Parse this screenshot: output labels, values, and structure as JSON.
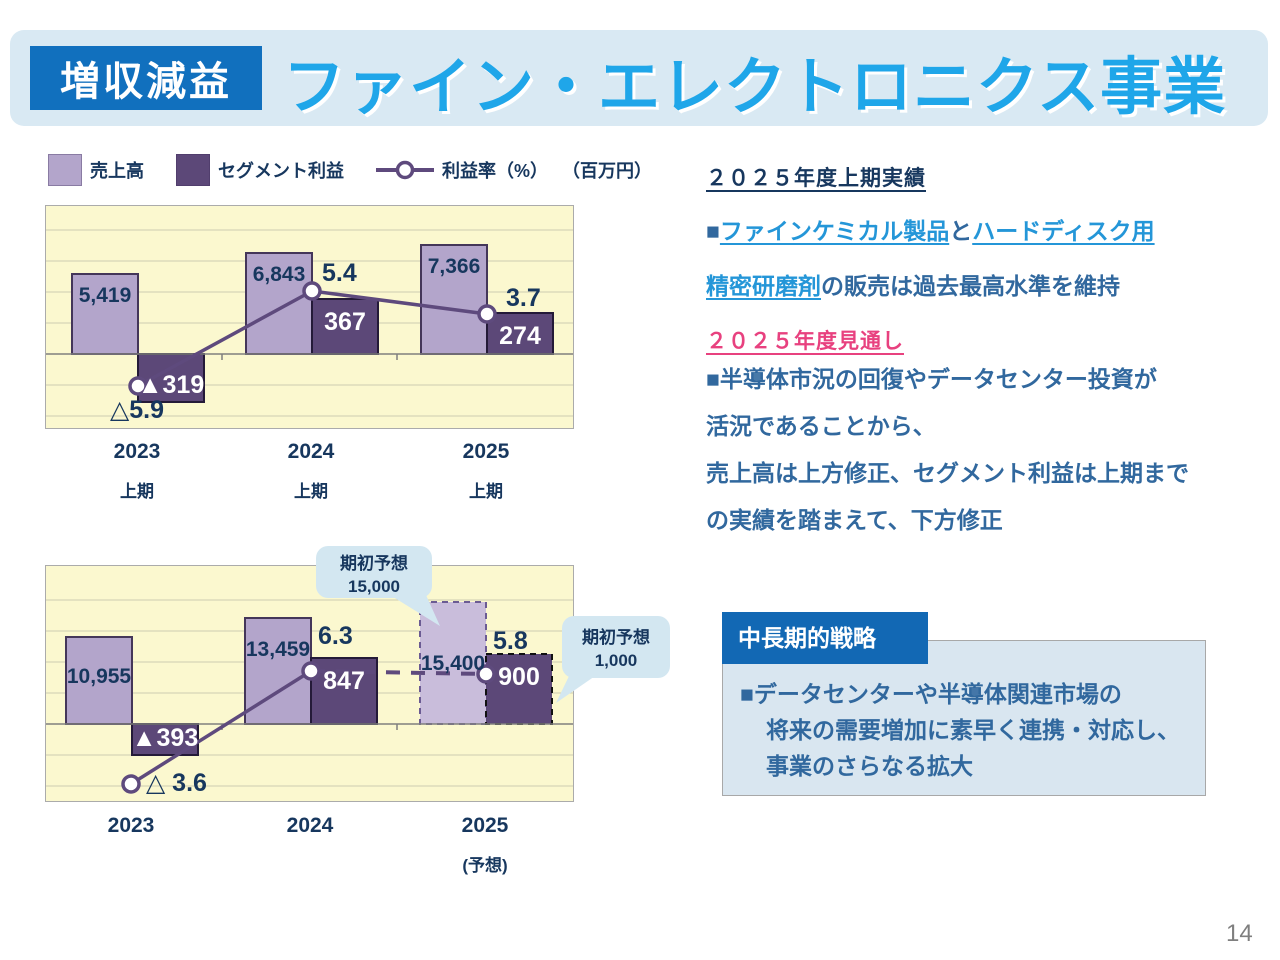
{
  "slide": {
    "badge": "増収減益",
    "title": "ファイン・エレクトロニクス事業",
    "page_number": "14"
  },
  "legend": {
    "sales_label": "売上高",
    "profit_label": "セグメント利益",
    "rate_label": "利益率（%）",
    "unit_label": "（百万円）"
  },
  "colors": {
    "sales_bar": "#B3A5CB",
    "sales_bar_forecast": "#C9BDDB",
    "profit_bar": "#5C4878",
    "bar_border": "#443659",
    "rate_line": "#5E4A7D",
    "grid": "#CCCCB2",
    "axis": "#7F7F7F",
    "chart_bg": "#FBF8CF",
    "callout_bg": "#D3E7F1",
    "badge_blue": "#1170BE",
    "title_blue": "#1FA6E9",
    "heading_navy": "#17375E",
    "body_blue": "#31689E",
    "link_blue": "#2496D8",
    "pink": "#E8417F",
    "strategy_header_blue": "#1268B4",
    "strategy_bg": "#D9E6F0"
  },
  "chart_data": [
    {
      "type": "bar",
      "name": "half-year-results",
      "unit": "百万円",
      "categories": [
        {
          "year": "2023",
          "sub": "上期"
        },
        {
          "year": "2024",
          "sub": "上期"
        },
        {
          "year": "2025",
          "sub": "上期"
        }
      ],
      "series": [
        {
          "name": "売上高",
          "values": [
            5419,
            6843,
            7366
          ],
          "labels": [
            "5,419",
            "6,843",
            "7,366"
          ]
        },
        {
          "name": "セグメント利益",
          "values": [
            -319,
            367,
            274
          ],
          "labels": [
            "▲319",
            "367",
            "274"
          ]
        },
        {
          "name": "利益率（%）",
          "values": [
            -5.9,
            5.4,
            3.7
          ],
          "labels": [
            "△5.9",
            "5.4",
            "3.7"
          ]
        }
      ]
    },
    {
      "type": "bar",
      "name": "full-year-results-and-forecast",
      "unit": "百万円",
      "forecast_index": 2,
      "categories": [
        {
          "year": "2023",
          "sub": ""
        },
        {
          "year": "2024",
          "sub": ""
        },
        {
          "year": "2025",
          "sub": "(予想)"
        }
      ],
      "series": [
        {
          "name": "売上高",
          "values": [
            10955,
            13459,
            15400
          ],
          "labels": [
            "10,955",
            "13,459",
            "15,400"
          ]
        },
        {
          "name": "セグメント利益",
          "values": [
            -393,
            847,
            900
          ],
          "labels": [
            "▲393",
            "847",
            "900"
          ]
        },
        {
          "name": "利益率（%）",
          "values": [
            -3.6,
            6.3,
            5.8
          ],
          "labels": [
            "△ 3.6",
            "6.3",
            "5.8"
          ]
        }
      ],
      "callouts": [
        {
          "line1": "期初予想",
          "line2": "15,000"
        },
        {
          "line1": "期初予想",
          "line2": "1,000"
        }
      ]
    }
  ],
  "right_panel": {
    "results_heading": "２０２５年度上期実績",
    "results_parts": [
      {
        "t": "■",
        "s": "plain"
      },
      {
        "t": "ファインケミカル製品",
        "s": "link"
      },
      {
        "t": "と",
        "s": "plain"
      },
      {
        "t": "ハードディスク用",
        "s": "link"
      },
      {
        "t": "",
        "s": "br"
      },
      {
        "t": "精密研磨剤",
        "s": "link"
      },
      {
        "t": "の販売は過去最高水準を維持",
        "s": "plain"
      }
    ],
    "outlook_heading": "２０２５年度見通し",
    "outlook_lines": [
      "■半導体市況の回復やデータセンター投資が",
      "活況であることから、",
      "売上高は上方修正、セグメント利益は上期まで",
      "の実績を踏まえて、下方修正"
    ]
  },
  "strategy": {
    "header": "中長期的戦略",
    "lines": [
      "■データセンターや半導体関連市場の",
      "将来の需要増加に素早く連携・対応し、",
      "事業のさらなる拡大"
    ]
  }
}
